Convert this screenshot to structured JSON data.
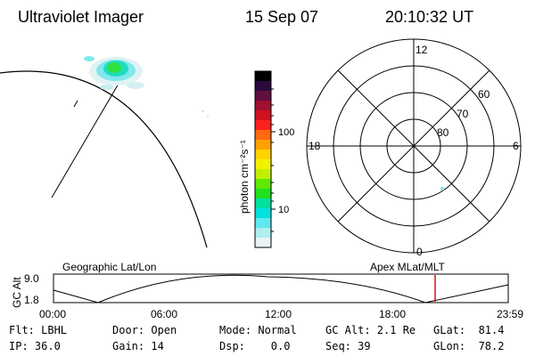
{
  "header": {
    "title": "Ultraviolet Imager",
    "date": "15 Sep 07",
    "time": "20:10:32 UT"
  },
  "colorbar": {
    "label": "photon cm⁻²s⁻¹",
    "ticks": [
      "100",
      "10"
    ],
    "colors": [
      "#000000",
      "#2a0a3c",
      "#601040",
      "#a01030",
      "#d01020",
      "#ff2020",
      "#ff6a10",
      "#ffa000",
      "#ffd200",
      "#f2f200",
      "#c0f000",
      "#60e800",
      "#20e020",
      "#00e0a0",
      "#00e0e0",
      "#60e8f0",
      "#b0eef0",
      "#e8f4f4"
    ]
  },
  "polar": {
    "labels_mlt": [
      "12",
      "18",
      "6",
      "0"
    ],
    "labels_mlat": [
      "60",
      "70",
      "80"
    ]
  },
  "timeline": {
    "left_label": "Geographic Lat/Lon",
    "right_label": "Apex  MLat/MLT",
    "axis_title": "GC Alt",
    "y_ticks": [
      "9.0",
      "1.8"
    ],
    "x_ticks": [
      "00:00",
      "06:00",
      "12:00",
      "18:00",
      "23:59"
    ],
    "marker_color": "#dd0000"
  },
  "status": {
    "flt": "Flt: LBHL",
    "ip": "IP: 36.0",
    "door": "Door: Open",
    "gain": "Gain: 14",
    "mode": "Mode: Normal",
    "dsp": "Dsp:    0.0",
    "gcalt": "GC Alt: 2.1 Re",
    "seq": "Seq: 39",
    "glat": "GLat:  81.4",
    "glon": "GLon:  78.2"
  }
}
